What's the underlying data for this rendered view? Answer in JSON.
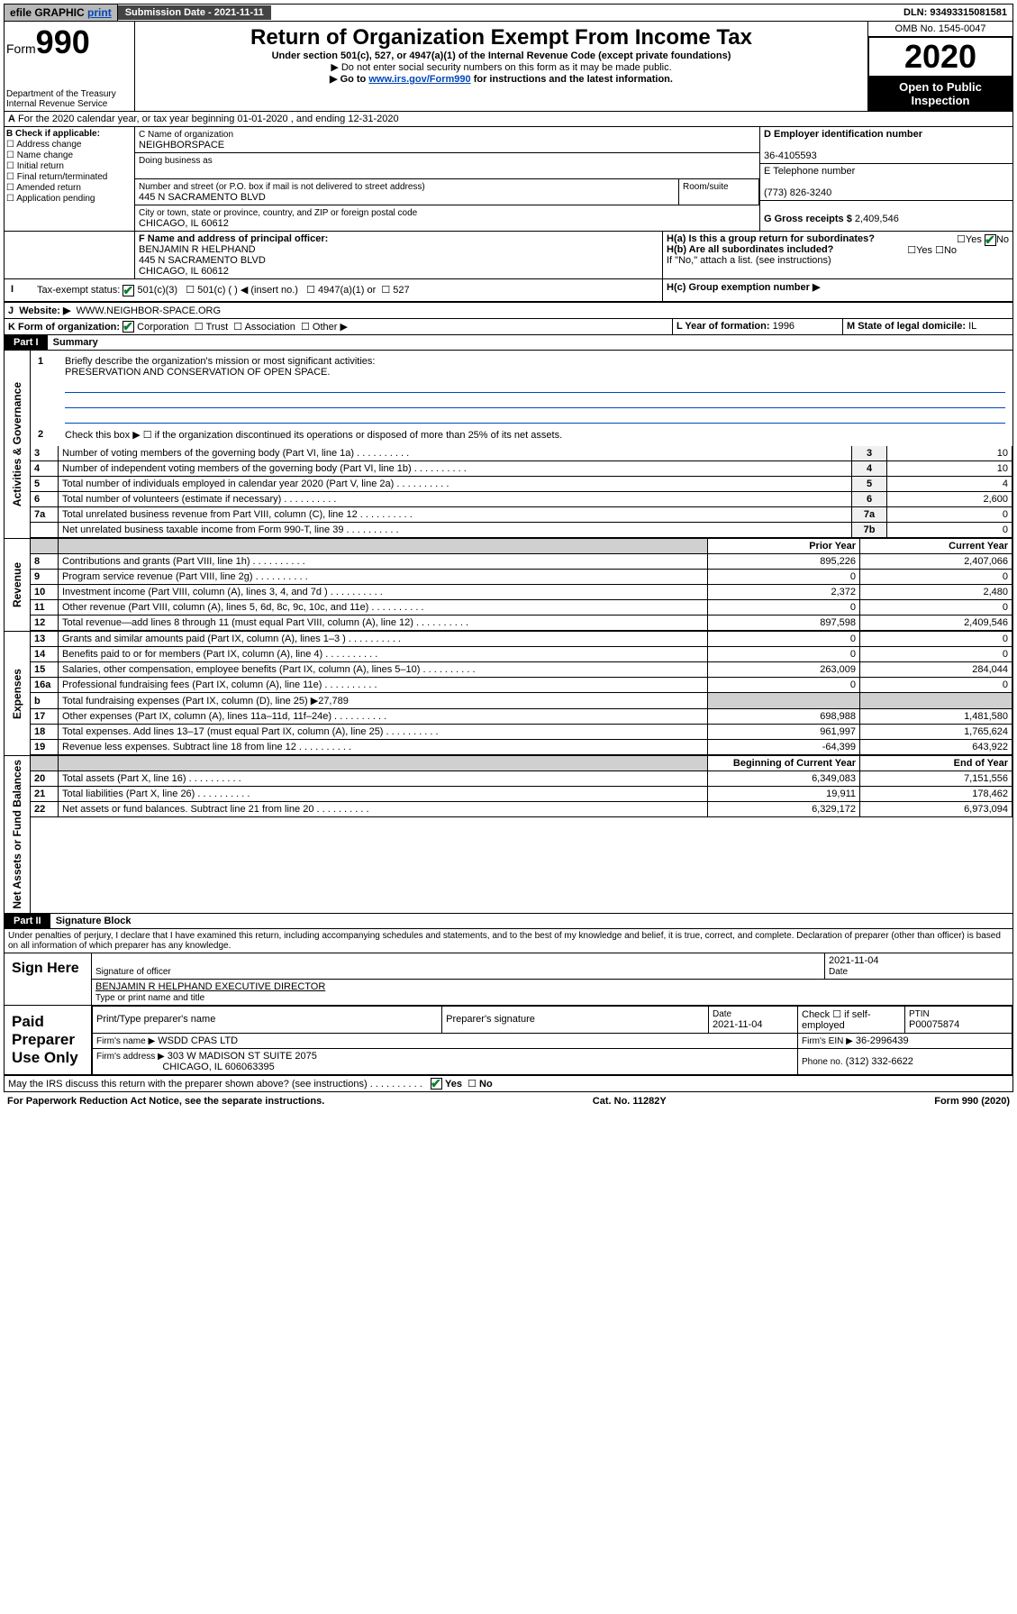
{
  "topbar": {
    "efile": "efile GRAPHIC",
    "print": "print",
    "sub_label": "Submission Date - 2021-11-11",
    "dln": "DLN: 93493315081581"
  },
  "header": {
    "form_word": "Form",
    "form_num": "990",
    "dept": "Department of the Treasury",
    "irs": "Internal Revenue Service",
    "title": "Return of Organization Exempt From Income Tax",
    "sub1": "Under section 501(c), 527, or 4947(a)(1) of the Internal Revenue Code (except private foundations)",
    "sub2": "▶ Do not enter social security numbers on this form as it may be made public.",
    "sub3_pre": "▶ Go to ",
    "sub3_link": "www.irs.gov/Form990",
    "sub3_post": " for instructions and the latest information.",
    "omb": "OMB No. 1545-0047",
    "year": "2020",
    "public": "Open to Public Inspection"
  },
  "line_a": "For the 2020 calendar year, or tax year beginning 01-01-2020    , and ending 12-31-2020",
  "col_b": {
    "hdr": "B Check if applicable:",
    "items": [
      "Address change",
      "Name change",
      "Initial return",
      "Final return/terminated",
      "Amended return",
      "Application pending"
    ]
  },
  "col_c": {
    "name_lbl": "C Name of organization",
    "name": "NEIGHBORSPACE",
    "dba_lbl": "Doing business as",
    "addr_lbl": "Number and street (or P.O. box if mail is not delivered to street address)",
    "room": "Room/suite",
    "addr": "445 N SACRAMENTO BLVD",
    "city_lbl": "City or town, state or province, country, and ZIP or foreign postal code",
    "city": "CHICAGO, IL  60612"
  },
  "col_d": {
    "ein_lbl": "D Employer identification number",
    "ein": "36-4105593",
    "tel_lbl": "E Telephone number",
    "tel": "(773) 826-3240",
    "gross_lbl": "G Gross receipts $",
    "gross": "2,409,546"
  },
  "col_f": {
    "lbl": "F  Name and address of principal officer:",
    "name": "BENJAMIN R HELPHAND",
    "addr": "445 N SACRAMENTO BLVD",
    "city": "CHICAGO, IL  60612"
  },
  "col_h": {
    "a": "H(a)  Is this a group return for subordinates?",
    "b": "H(b)  Are all subordinates included?",
    "b_note": "If \"No,\" attach a list. (see instructions)",
    "c": "H(c)  Group exemption number ▶",
    "yes": "Yes",
    "no": "No"
  },
  "line_i": {
    "lbl": "Tax-exempt status:",
    "opts": [
      "501(c)(3)",
      "501(c) (   ) ◀ (insert no.)",
      "4947(a)(1) or",
      "527"
    ]
  },
  "line_j": {
    "lbl": "Website: ▶",
    "val": "WWW.NEIGHBOR-SPACE.ORG"
  },
  "line_k": {
    "lbl": "K Form of organization:",
    "opts": [
      "Corporation",
      "Trust",
      "Association",
      "Other ▶"
    ]
  },
  "line_l": {
    "lbl": "L Year of formation:",
    "val": "1996"
  },
  "line_m": {
    "lbl": "M State of legal domicile:",
    "val": "IL"
  },
  "part1": {
    "hdr": "Part I",
    "title": "Summary"
  },
  "summary": {
    "q1": "Briefly describe the organization's mission or most significant activities:",
    "mission": "PRESERVATION AND CONSERVATION OF OPEN SPACE.",
    "q2": "Check this box ▶ ☐  if the organization discontinued its operations or disposed of more than 25% of its net assets.",
    "lines": [
      {
        "n": "3",
        "t": "Number of voting members of the governing body (Part VI, line 1a)",
        "c": "3",
        "v": "10"
      },
      {
        "n": "4",
        "t": "Number of independent voting members of the governing body (Part VI, line 1b)",
        "c": "4",
        "v": "10"
      },
      {
        "n": "5",
        "t": "Total number of individuals employed in calendar year 2020 (Part V, line 2a)",
        "c": "5",
        "v": "4"
      },
      {
        "n": "6",
        "t": "Total number of volunteers (estimate if necessary)",
        "c": "6",
        "v": "2,600"
      },
      {
        "n": "7a",
        "t": "Total unrelated business revenue from Part VIII, column (C), line 12",
        "c": "7a",
        "v": "0"
      },
      {
        "n": "",
        "t": "Net unrelated business taxable income from Form 990-T, line 39",
        "c": "7b",
        "v": "0"
      }
    ],
    "col_prior": "Prior Year",
    "col_current": "Current Year",
    "gov_label": "Activities & Governance",
    "rev_label": "Revenue",
    "exp_label": "Expenses",
    "na_label": "Net Assets or Fund Balances",
    "revenue": [
      {
        "n": "8",
        "t": "Contributions and grants (Part VIII, line 1h)",
        "p": "895,226",
        "c": "2,407,066"
      },
      {
        "n": "9",
        "t": "Program service revenue (Part VIII, line 2g)",
        "p": "0",
        "c": "0"
      },
      {
        "n": "10",
        "t": "Investment income (Part VIII, column (A), lines 3, 4, and 7d )",
        "p": "2,372",
        "c": "2,480"
      },
      {
        "n": "11",
        "t": "Other revenue (Part VIII, column (A), lines 5, 6d, 8c, 9c, 10c, and 11e)",
        "p": "0",
        "c": "0"
      },
      {
        "n": "12",
        "t": "Total revenue—add lines 8 through 11 (must equal Part VIII, column (A), line 12)",
        "p": "897,598",
        "c": "2,409,546"
      }
    ],
    "expenses": [
      {
        "n": "13",
        "t": "Grants and similar amounts paid (Part IX, column (A), lines 1–3 )",
        "p": "0",
        "c": "0"
      },
      {
        "n": "14",
        "t": "Benefits paid to or for members (Part IX, column (A), line 4)",
        "p": "0",
        "c": "0"
      },
      {
        "n": "15",
        "t": "Salaries, other compensation, employee benefits (Part IX, column (A), lines 5–10)",
        "p": "263,009",
        "c": "284,044"
      },
      {
        "n": "16a",
        "t": "Professional fundraising fees (Part IX, column (A), line 11e)",
        "p": "0",
        "c": "0"
      },
      {
        "n": "b",
        "t": "Total fundraising expenses (Part IX, column (D), line 25) ▶27,789",
        "p": "",
        "c": ""
      },
      {
        "n": "17",
        "t": "Other expenses (Part IX, column (A), lines 11a–11d, 11f–24e)",
        "p": "698,988",
        "c": "1,481,580"
      },
      {
        "n": "18",
        "t": "Total expenses. Add lines 13–17 (must equal Part IX, column (A), line 25)",
        "p": "961,997",
        "c": "1,765,624"
      },
      {
        "n": "19",
        "t": "Revenue less expenses. Subtract line 18 from line 12",
        "p": "-64,399",
        "c": "643,922"
      }
    ],
    "na_hdr_p": "Beginning of Current Year",
    "na_hdr_c": "End of Year",
    "netassets": [
      {
        "n": "20",
        "t": "Total assets (Part X, line 16)",
        "p": "6,349,083",
        "c": "7,151,556"
      },
      {
        "n": "21",
        "t": "Total liabilities (Part X, line 26)",
        "p": "19,911",
        "c": "178,462"
      },
      {
        "n": "22",
        "t": "Net assets or fund balances. Subtract line 21 from line 20",
        "p": "6,329,172",
        "c": "6,973,094"
      }
    ]
  },
  "part2": {
    "hdr": "Part II",
    "title": "Signature Block",
    "decl": "Under penalties of perjury, I declare that I have examined this return, including accompanying schedules and statements, and to the best of my knowledge and belief, it is true, correct, and complete. Declaration of preparer (other than officer) is based on all information of which preparer has any knowledge."
  },
  "sign": {
    "here": "Sign Here",
    "sig_officer": "Signature of officer",
    "date": "Date",
    "date_val": "2021-11-04",
    "name": "BENJAMIN R HELPHAND  EXECUTIVE DIRECTOR",
    "name_lbl": "Type or print name and title"
  },
  "paid": {
    "lbl": "Paid Preparer Use Only",
    "h1": "Print/Type preparer's name",
    "h2": "Preparer's signature",
    "h3": "Date",
    "h4": "Check ☐ if self-employed",
    "h5": "PTIN",
    "date": "2021-11-04",
    "ptin": "P00075874",
    "firm_lbl": "Firm's name    ▶",
    "firm": "WSDD CPAS LTD",
    "ein_lbl": "Firm's EIN ▶",
    "ein": "36-2996439",
    "addr_lbl": "Firm's address ▶",
    "addr": "303 W MADISON ST SUITE 2075",
    "city": "CHICAGO, IL  606063395",
    "phone_lbl": "Phone no.",
    "phone": "(312) 332-6622"
  },
  "discuss": "May the IRS discuss this return with the preparer shown above? (see instructions)",
  "footer": {
    "pra": "For Paperwork Reduction Act Notice, see the separate instructions.",
    "cat": "Cat. No. 11282Y",
    "form": "Form 990 (2020)"
  }
}
